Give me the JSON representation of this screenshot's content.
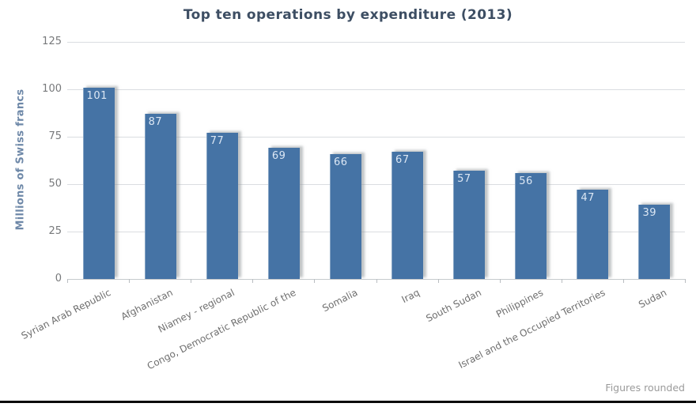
{
  "chart_data": {
    "type": "bar",
    "title": "Top ten operations by expenditure (2013)",
    "ylabel": "Millions of Swiss francs",
    "xlabel": "",
    "categories": [
      "Syrian Arab Republic",
      "Afghanistan",
      "Niamey - regional",
      "Congo, Democratic Republic of the",
      "Somalia",
      "Iraq",
      "South Sudan",
      "Philippines",
      "Israel and the Occupied Territories",
      "Sudan"
    ],
    "values": [
      101,
      87,
      77,
      69,
      66,
      67,
      57,
      56,
      47,
      39
    ],
    "value_labels": [
      "101",
      "87",
      "77",
      "69",
      "66",
      "67",
      "57",
      "56",
      "47",
      "39"
    ],
    "ylim": [
      0,
      125
    ],
    "yticks": [
      125,
      100,
      75,
      50,
      25,
      0
    ],
    "grid": true,
    "legend": false,
    "footnote": "Figures rounded"
  },
  "colors": {
    "bar": "#4573a5",
    "bar_shadow": "rgba(140,145,150,0.55)",
    "bar_left_edge": "rgba(255,255,255,0.35)",
    "value_label": "#dce7f4",
    "title": "#3d4e63",
    "y_axis_title": "#6e88a8",
    "tick_label": "#77797b",
    "gridline": "#dadde1",
    "baseline": "#c6cacd",
    "category_tick": "#b9bdc1",
    "x_label": "#6e6e6e",
    "footnote": "#9b9b9b",
    "bottom_rule": "#0a0a0a",
    "background": "#ffffff"
  }
}
